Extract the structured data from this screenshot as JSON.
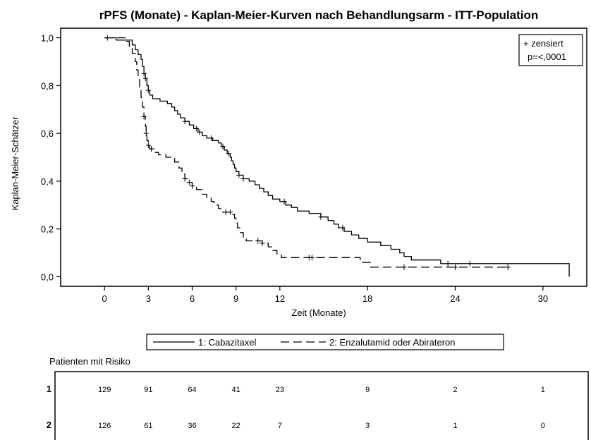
{
  "colors": {
    "line": "#000000",
    "frame": "#000000",
    "background": "#ffffff"
  },
  "chart_data": {
    "type": "line",
    "title": "rPFS (Monate) - Kaplan-Meier-Kurven nach Behandlungsarm - ITT-Population",
    "xlabel": "Zeit (Monate)",
    "ylabel": "Kaplan-Meier-Schätzer",
    "xlim": [
      -3,
      33
    ],
    "ylim": [
      -0.04,
      1.04
    ],
    "xticks": [
      0,
      3,
      6,
      9,
      12,
      18,
      24,
      30
    ],
    "xtick_labels": [
      "0",
      "3",
      "6",
      "9",
      "12",
      "18",
      "24",
      "30"
    ],
    "yticks": [
      0,
      0.2,
      0.4,
      0.6,
      0.8,
      1.0
    ],
    "ytick_labels": [
      "0,0",
      "0,2",
      "0,4",
      "0,6",
      "0,8",
      "1,0"
    ],
    "grid": false,
    "legend_position": "bottom",
    "legend": {
      "entries": [
        {
          "label": "1: Cabazitaxel",
          "style": "solid"
        },
        {
          "label": "2: Enzalutamid oder Abirateron",
          "style": "dashed"
        }
      ]
    },
    "annotation_box": {
      "position": "top-right",
      "censor_label": "+ zensiert",
      "p_value": "p=<,0001"
    },
    "series": [
      {
        "name": "1: Cabazitaxel",
        "style": "solid",
        "steps": [
          [
            0,
            1.0
          ],
          [
            0.8,
            0.99
          ],
          [
            1.9,
            0.97
          ],
          [
            2.1,
            0.95
          ],
          [
            2.3,
            0.93
          ],
          [
            2.5,
            0.91
          ],
          [
            2.6,
            0.88
          ],
          [
            2.7,
            0.85
          ],
          [
            2.8,
            0.83
          ],
          [
            2.9,
            0.8
          ],
          [
            3.0,
            0.78
          ],
          [
            3.1,
            0.76
          ],
          [
            3.3,
            0.745
          ],
          [
            3.8,
            0.735
          ],
          [
            4.3,
            0.725
          ],
          [
            4.6,
            0.71
          ],
          [
            4.8,
            0.695
          ],
          [
            5.0,
            0.68
          ],
          [
            5.2,
            0.665
          ],
          [
            5.5,
            0.65
          ],
          [
            5.8,
            0.635
          ],
          [
            6.1,
            0.62
          ],
          [
            6.4,
            0.605
          ],
          [
            6.7,
            0.59
          ],
          [
            7.0,
            0.58
          ],
          [
            7.4,
            0.57
          ],
          [
            7.8,
            0.56
          ],
          [
            8.0,
            0.545
          ],
          [
            8.2,
            0.53
          ],
          [
            8.4,
            0.515
          ],
          [
            8.6,
            0.5
          ],
          [
            8.7,
            0.485
          ],
          [
            8.8,
            0.47
          ],
          [
            8.9,
            0.455
          ],
          [
            9.0,
            0.44
          ],
          [
            9.2,
            0.425
          ],
          [
            9.5,
            0.41
          ],
          [
            9.9,
            0.4
          ],
          [
            10.3,
            0.385
          ],
          [
            10.6,
            0.37
          ],
          [
            10.9,
            0.355
          ],
          [
            11.2,
            0.34
          ],
          [
            11.5,
            0.325
          ],
          [
            12.0,
            0.315
          ],
          [
            12.4,
            0.3
          ],
          [
            12.8,
            0.29
          ],
          [
            13.2,
            0.275
          ],
          [
            14.0,
            0.265
          ],
          [
            14.8,
            0.25
          ],
          [
            15.3,
            0.235
          ],
          [
            15.7,
            0.22
          ],
          [
            16.0,
            0.205
          ],
          [
            16.4,
            0.19
          ],
          [
            16.9,
            0.175
          ],
          [
            17.4,
            0.16
          ],
          [
            18.0,
            0.145
          ],
          [
            18.9,
            0.13
          ],
          [
            19.6,
            0.115
          ],
          [
            20.2,
            0.1
          ],
          [
            20.5,
            0.085
          ],
          [
            21.0,
            0.07
          ],
          [
            23.0,
            0.055
          ],
          [
            31.8,
            0.0
          ]
        ],
        "censored_x": [
          0.2,
          2.7,
          2.8,
          3.0,
          5.5,
          6.3,
          6.5,
          7.3,
          8.1,
          8.5,
          9.2,
          9.5,
          12.3,
          14.8,
          16.3,
          23.5,
          25.0
        ]
      },
      {
        "name": "2: Enzalutamid oder Abirateron",
        "style": "dashed",
        "steps": [
          [
            0,
            1.0
          ],
          [
            1.5,
            0.985
          ],
          [
            1.7,
            0.96
          ],
          [
            1.9,
            0.935
          ],
          [
            2.1,
            0.9
          ],
          [
            2.2,
            0.865
          ],
          [
            2.3,
            0.83
          ],
          [
            2.4,
            0.79
          ],
          [
            2.5,
            0.75
          ],
          [
            2.6,
            0.71
          ],
          [
            2.7,
            0.67
          ],
          [
            2.8,
            0.63
          ],
          [
            2.85,
            0.6
          ],
          [
            2.9,
            0.57
          ],
          [
            3.0,
            0.55
          ],
          [
            3.1,
            0.535
          ],
          [
            3.4,
            0.52
          ],
          [
            3.7,
            0.51
          ],
          [
            4.2,
            0.5
          ],
          [
            4.8,
            0.48
          ],
          [
            5.1,
            0.455
          ],
          [
            5.3,
            0.43
          ],
          [
            5.5,
            0.41
          ],
          [
            5.7,
            0.395
          ],
          [
            6.0,
            0.38
          ],
          [
            6.3,
            0.365
          ],
          [
            6.7,
            0.345
          ],
          [
            7.0,
            0.33
          ],
          [
            7.3,
            0.315
          ],
          [
            7.5,
            0.3
          ],
          [
            7.8,
            0.285
          ],
          [
            8.0,
            0.27
          ],
          [
            8.7,
            0.26
          ],
          [
            8.9,
            0.245
          ],
          [
            9.0,
            0.225
          ],
          [
            9.1,
            0.205
          ],
          [
            9.3,
            0.185
          ],
          [
            9.5,
            0.165
          ],
          [
            9.7,
            0.15
          ],
          [
            10.8,
            0.14
          ],
          [
            11.2,
            0.125
          ],
          [
            11.5,
            0.11
          ],
          [
            11.8,
            0.095
          ],
          [
            12.1,
            0.08
          ],
          [
            17.5,
            0.06
          ],
          [
            18.2,
            0.04
          ],
          [
            27.6,
            0.04
          ]
        ],
        "censored_x": [
          2.7,
          2.85,
          3.0,
          3.2,
          5.5,
          5.8,
          6.0,
          8.3,
          8.6,
          10.5,
          10.8,
          14.0,
          14.2,
          20.5,
          24.0,
          27.6
        ]
      }
    ]
  },
  "risk_table": {
    "header": "Patienten mit Risiko",
    "time_points": [
      0,
      3,
      6,
      9,
      12,
      18,
      24,
      30
    ],
    "rows": [
      {
        "label": "1",
        "values": [
          "129",
          "91",
          "64",
          "41",
          "23",
          "9",
          "2",
          "1"
        ]
      },
      {
        "label": "2",
        "values": [
          "126",
          "61",
          "36",
          "22",
          "7",
          "3",
          "1",
          "0"
        ]
      }
    ]
  }
}
